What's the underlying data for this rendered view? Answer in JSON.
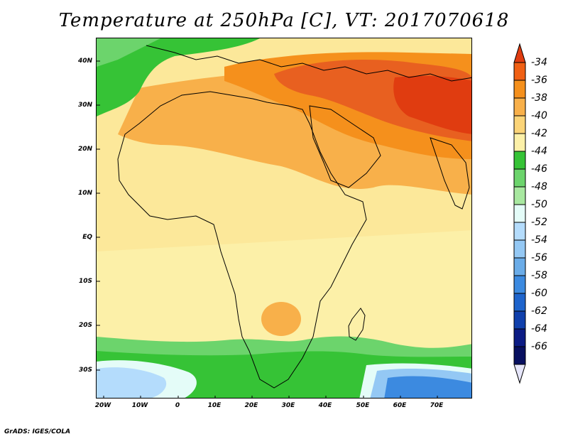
{
  "title": "Temperature at 250hPa [C], VT: 2017070618",
  "credit": "GrADS: IGES/COLA",
  "lat_ticks": [
    "40N",
    "30N",
    "20N",
    "10N",
    "EQ",
    "10S",
    "20S",
    "30S"
  ],
  "lon_ticks": [
    "20W",
    "10W",
    "0",
    "10E",
    "20E",
    "30E",
    "40E",
    "50E",
    "60E",
    "70E"
  ],
  "colorbar": {
    "labels": [
      "-34",
      "-36",
      "-38",
      "-40",
      "-42",
      "-44",
      "-46",
      "-48",
      "-50",
      "-52",
      "-54",
      "-56",
      "-58",
      "-60",
      "-62",
      "-64",
      "-66"
    ],
    "colors": [
      "#e03c10",
      "#f06014",
      "#f5901c",
      "#f8b04a",
      "#fbd478",
      "#fcf0a8",
      "#36c336",
      "#6cd46c",
      "#a8e8a0",
      "#e4fcf8",
      "#b4dcfc",
      "#94c8f4",
      "#6aace8",
      "#3c8ae0",
      "#1e64cc",
      "#1040ac",
      "#0c1c84",
      "#081060"
    ],
    "top_triangle_color": "#e03c10",
    "bottom_triangle_color": "#e6e6fa"
  }
}
